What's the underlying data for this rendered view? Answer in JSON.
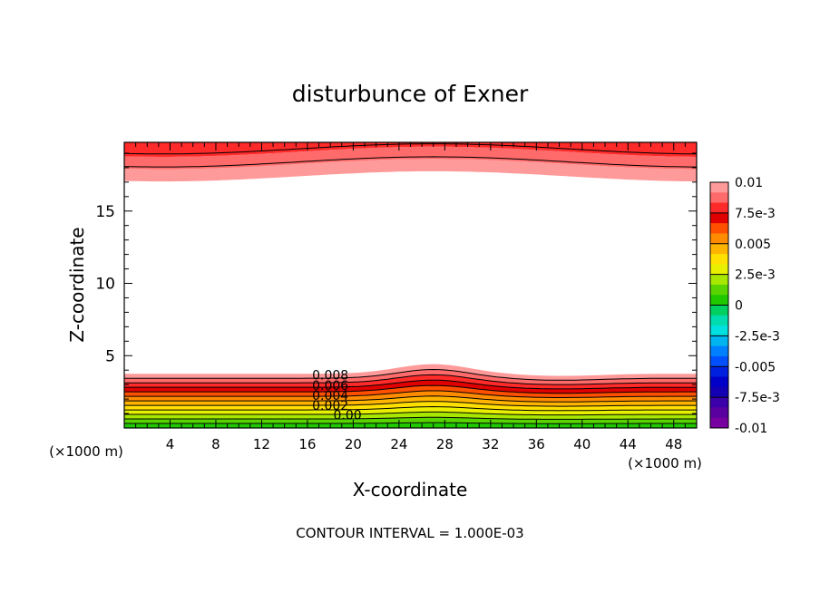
{
  "chart_data": {
    "type": "contour",
    "title": "disturbunce of Exner",
    "xlabel": "X-coordinate",
    "ylabel": "Z-coordinate",
    "x_unit": "(×1000 m)",
    "x_unit_secondary": "(×1000 m)",
    "footer": "CONTOUR INTERVAL = 1.000E-03",
    "xlim": [
      0,
      50
    ],
    "ylim": [
      0,
      19.75
    ],
    "x_ticks": [
      4,
      8,
      12,
      16,
      20,
      24,
      28,
      32,
      36,
      40,
      44,
      48
    ],
    "y_ticks": [
      5,
      10,
      15
    ],
    "contour_interval": 0.001,
    "contour_labels": [
      "0.008",
      "0.006",
      "0.004",
      "0.002",
      "0.00"
    ],
    "colorbar": {
      "labels": [
        "0.01",
        "7.5e-3",
        "0.005",
        "2.5e-3",
        "0",
        "-2.5e-3",
        "-0.005",
        "-7.5e-3",
        "-0.01"
      ],
      "colors": [
        "#ff9a9a",
        "#ff6a6a",
        "#ff2a2a",
        "#e00000",
        "#ff5000",
        "#ff8c00",
        "#ffb400",
        "#ffe000",
        "#e8f000",
        "#a8e800",
        "#5ad400",
        "#20c800",
        "#00d060",
        "#00dcb0",
        "#00e0e0",
        "#00b4f0",
        "#0080ff",
        "#0050ff",
        "#0020e0",
        "#0000c8",
        "#1400b4",
        "#3c00aa",
        "#5a00a0",
        "#7800a0"
      ]
    },
    "bottom_layer_colors": [
      "#ff9a9a",
      "#ff6a6a",
      "#ff2a2a",
      "#e00000",
      "#ff5000",
      "#ff8c00",
      "#ffb400",
      "#ffe000",
      "#e8f000",
      "#a8e800",
      "#5ad400",
      "#20c800"
    ],
    "top_layer_colors": [
      "#ff9a9a",
      "#ff6a6a",
      "#ff2a2a"
    ]
  }
}
